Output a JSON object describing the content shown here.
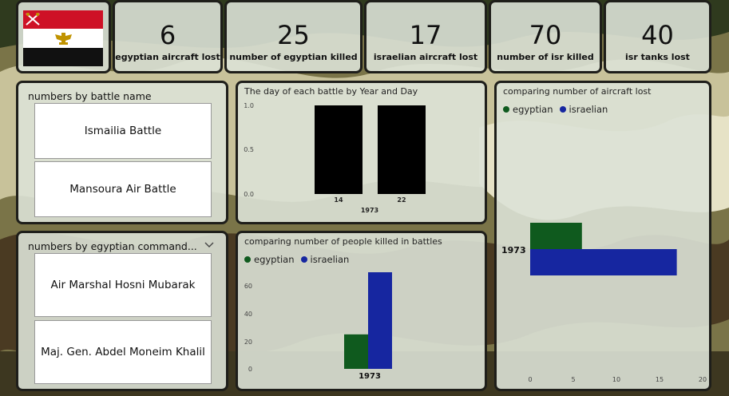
{
  "colors": {
    "egyptian": "#0f5a1e",
    "israelian": "#1626a0",
    "bar_black": "#000000",
    "flag_red": "#ce1126",
    "flag_black": "#111111",
    "eagle": "#c09300"
  },
  "kpis": [
    {
      "value": "6",
      "label": "egyptian aircraft lost"
    },
    {
      "value": "25",
      "label": "number of egyptian killed"
    },
    {
      "value": "17",
      "label": "israelian aircraft lost"
    },
    {
      "value": "70",
      "label": "number of isr killed"
    },
    {
      "value": "40",
      "label": "isr tanks lost"
    }
  ],
  "battle_slicer": {
    "title": "numbers by battle name",
    "items": [
      "Ismailia Battle",
      "Mansoura Air Battle"
    ]
  },
  "commander_slicer": {
    "title": "numbers by egyptian command...",
    "items": [
      "Air Marshal Hosni Mubarak",
      "Maj. Gen. Abdel Moneim Khalil"
    ]
  },
  "chart_data": [
    {
      "type": "bar",
      "title": "The day of each battle by Year and Day",
      "categories": [
        "14",
        "22"
      ],
      "group_label": "1973",
      "values": [
        1,
        1
      ],
      "ylim": [
        0,
        1.0
      ],
      "yticks": [
        "1.0",
        "0.5",
        "0.0"
      ],
      "grid": false
    },
    {
      "type": "bar",
      "title": "comparing number of people killed in battles",
      "categories": [
        "1973"
      ],
      "series": [
        {
          "name": "egyptian",
          "values": [
            25
          ]
        },
        {
          "name": "israelian",
          "values": [
            70
          ]
        }
      ],
      "ylim": [
        0,
        70
      ],
      "yticks": [
        "60",
        "40",
        "20",
        "0"
      ],
      "legend": "top-left",
      "grid": false
    },
    {
      "type": "bar",
      "orientation": "horizontal",
      "title": "comparing number of aircraft lost",
      "categories": [
        "1973"
      ],
      "series": [
        {
          "name": "egyptian",
          "values": [
            6
          ]
        },
        {
          "name": "israelian",
          "values": [
            17
          ]
        }
      ],
      "xlim": [
        0,
        20
      ],
      "xticks": [
        "0",
        "5",
        "10",
        "15",
        "20"
      ],
      "legend": "top-left",
      "grid": false
    }
  ]
}
